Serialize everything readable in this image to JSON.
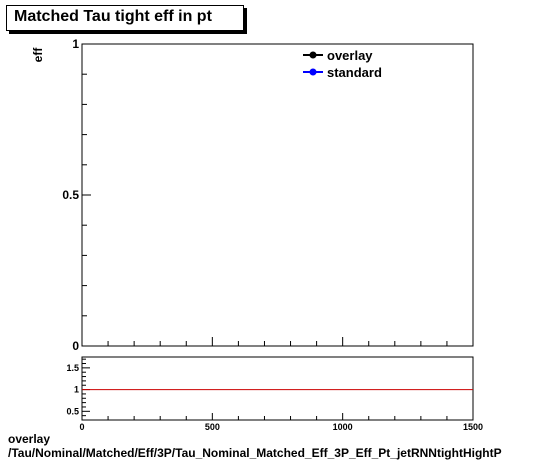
{
  "header": {
    "title": "Matched Tau tight eff in pt"
  },
  "footer": {
    "line1": "overlay",
    "line2": "/Tau/Nominal/Matched/Eff/3P/Tau_Nominal_Matched_Eff_3P_Eff_Pt_jetRNNtightHightP"
  },
  "colors": {
    "overlay": "#000000",
    "standard": "#0000ff",
    "ratio_line": "#cc0000"
  },
  "chart_data": [
    {
      "type": "line",
      "ylabel": "eff",
      "xlim": [
        0,
        1500
      ],
      "ylim": [
        0,
        1
      ],
      "yticks": [
        {
          "value": 0,
          "label": "0"
        },
        {
          "value": 0.5,
          "label": "0.5"
        },
        {
          "value": 1,
          "label": "1"
        }
      ],
      "legend_position": "top-right",
      "series": [
        {
          "name": "overlay",
          "color": "#000000",
          "x": [],
          "y": []
        },
        {
          "name": "standard",
          "color": "#0000ff",
          "x": [],
          "y": []
        }
      ],
      "grid": false
    },
    {
      "type": "line",
      "xlim": [
        0,
        1500
      ],
      "ylim": [
        0.3,
        1.75
      ],
      "xticks": [
        {
          "value": 0,
          "label": "0"
        },
        {
          "value": 500,
          "label": "500"
        },
        {
          "value": 1000,
          "label": "1000"
        },
        {
          "value": 1500,
          "label": "1500"
        }
      ],
      "yticks": [
        {
          "value": 0.5,
          "label": "0.5"
        },
        {
          "value": 1,
          "label": "1"
        },
        {
          "value": 1.5,
          "label": "1.5"
        }
      ],
      "reference_line": 1,
      "series": [],
      "grid": false
    }
  ]
}
